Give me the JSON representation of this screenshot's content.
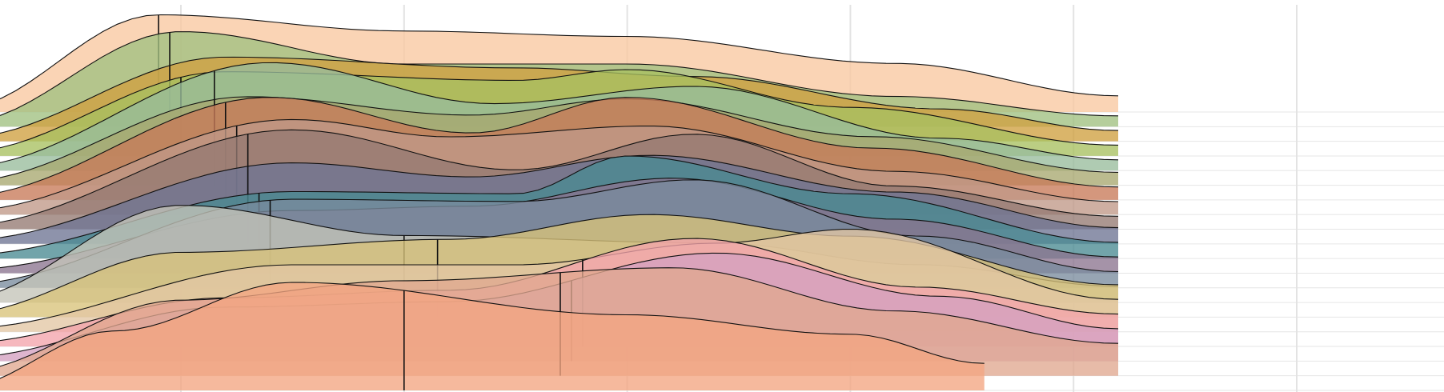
{
  "chart_data": {
    "type": "ridgeline",
    "title": "",
    "xlabel": "",
    "ylabel": "",
    "x_range": [
      -1.0,
      5.2
    ],
    "x_gridlines": [
      0,
      1,
      2,
      3,
      4,
      5
    ],
    "grid": true,
    "legend": "none",
    "median_lines": true,
    "series": [
      {
        "name": "",
        "color": "#f4a582",
        "x_range": [
          -1.0,
          3.6
        ],
        "density": [
          [
            -1.0,
            0.02
          ],
          [
            -0.3,
            0.55
          ],
          [
            0.5,
            1.0
          ],
          [
            2.0,
            0.7
          ],
          [
            3.0,
            0.52
          ],
          [
            3.6,
            0.25
          ]
        ],
        "median": 1.0
      },
      {
        "name": "",
        "color": "#e0a890",
        "x_range": [
          -1.0,
          4.2
        ],
        "density": [
          [
            -1.0,
            0.03
          ],
          [
            0.0,
            0.7
          ],
          [
            1.0,
            0.88
          ],
          [
            2.2,
            1.0
          ],
          [
            3.2,
            0.6
          ],
          [
            4.2,
            0.3
          ]
        ],
        "median": 1.7
      },
      {
        "name": "",
        "color": "#d4a0c0",
        "x_range": [
          -1.0,
          4.2
        ],
        "density": [
          [
            -1.0,
            0.03
          ],
          [
            0.2,
            0.5
          ],
          [
            1.2,
            0.55
          ],
          [
            2.4,
            1.0
          ],
          [
            3.4,
            0.6
          ],
          [
            4.2,
            0.3
          ]
        ],
        "median": 1.75
      },
      {
        "name": "",
        "color": "#f4a4ac",
        "x_range": [
          -1.0,
          4.2
        ],
        "density": [
          [
            -1.0,
            0.03
          ],
          [
            0.2,
            0.45
          ],
          [
            1.2,
            0.52
          ],
          [
            2.3,
            1.0
          ],
          [
            3.3,
            0.55
          ],
          [
            4.2,
            0.3
          ]
        ],
        "median": 1.8
      },
      {
        "name": "",
        "color": "#e3c7a4",
        "x_range": [
          -1.0,
          4.2
        ],
        "density": [
          [
            -1.0,
            0.03
          ],
          [
            0.5,
            0.62
          ],
          [
            1.5,
            0.62
          ],
          [
            2.4,
            0.82
          ],
          [
            3.0,
            0.95
          ],
          [
            4.2,
            0.3
          ]
        ],
        "median": 1.8
      },
      {
        "name": "",
        "color": "#d9c37a",
        "x_range": [
          -1.0,
          4.2
        ],
        "density": [
          [
            -1.0,
            0.03
          ],
          [
            0.0,
            0.6
          ],
          [
            1.2,
            0.72
          ],
          [
            2.1,
            0.95
          ],
          [
            3.0,
            0.75
          ],
          [
            4.2,
            0.3
          ]
        ],
        "median": 1.15
      },
      {
        "name": "",
        "color": "#c4c4b8",
        "x_range": [
          -1.0,
          4.2
        ],
        "density": [
          [
            -1.0,
            0.03
          ],
          [
            0.0,
            0.9
          ],
          [
            1.0,
            0.62
          ],
          [
            2.4,
            0.55
          ],
          [
            3.3,
            0.35
          ],
          [
            4.2,
            0.15
          ]
        ],
        "median": 1.0
      },
      {
        "name": "",
        "color": "#7a8c9e",
        "x_range": [
          -1.0,
          4.2
        ],
        "density": [
          [
            -1.0,
            0.03
          ],
          [
            0.5,
            0.82
          ],
          [
            1.5,
            0.8
          ],
          [
            2.3,
            1.0
          ],
          [
            3.3,
            0.48
          ],
          [
            4.2,
            0.15
          ]
        ],
        "median": 0.4
      },
      {
        "name": "",
        "color": "#8c7490",
        "x_range": [
          -1.0,
          4.2
        ],
        "density": [
          [
            -1.0,
            0.03
          ],
          [
            0.5,
            0.58
          ],
          [
            1.3,
            0.62
          ],
          [
            2.2,
            0.88
          ],
          [
            3.2,
            0.5
          ],
          [
            4.2,
            0.15
          ]
        ],
        "median": 0.4
      },
      {
        "name": "",
        "color": "#4a8a92",
        "x_range": [
          -1.0,
          4.2
        ],
        "density": [
          [
            -1.0,
            0.03
          ],
          [
            0.5,
            0.62
          ],
          [
            1.5,
            0.6
          ],
          [
            2.0,
            0.95
          ],
          [
            3.0,
            0.6
          ],
          [
            4.2,
            0.15
          ]
        ],
        "median": 0.35
      },
      {
        "name": "",
        "color": "#6e7494",
        "x_range": [
          -1.0,
          4.2
        ],
        "density": [
          [
            -1.0,
            0.03
          ],
          [
            0.5,
            0.75
          ],
          [
            1.3,
            0.62
          ],
          [
            2.1,
            0.82
          ],
          [
            3.2,
            0.48
          ],
          [
            4.2,
            0.15
          ]
        ],
        "median": 0.3
      },
      {
        "name": "",
        "color": "#957a72",
        "x_range": [
          -1.0,
          4.2
        ],
        "density": [
          [
            -1.0,
            0.03
          ],
          [
            0.5,
            0.92
          ],
          [
            1.5,
            0.55
          ],
          [
            2.3,
            0.88
          ],
          [
            3.2,
            0.4
          ],
          [
            4.2,
            0.12
          ]
        ],
        "median": 0.3
      },
      {
        "name": "",
        "color": "#c09888",
        "x_range": [
          -1.0,
          4.2
        ],
        "density": [
          [
            -1.0,
            0.03
          ],
          [
            0.5,
            0.88
          ],
          [
            1.2,
            0.72
          ],
          [
            2.1,
            0.82
          ],
          [
            3.2,
            0.4
          ],
          [
            4.2,
            0.12
          ]
        ],
        "median": 0.25
      },
      {
        "name": "",
        "color": "#c87a58",
        "x_range": [
          -1.0,
          4.2
        ],
        "density": [
          [
            -1.0,
            0.03
          ],
          [
            0.4,
            0.95
          ],
          [
            1.3,
            0.62
          ],
          [
            2.0,
            0.95
          ],
          [
            3.1,
            0.48
          ],
          [
            4.2,
            0.12
          ]
        ],
        "median": 0.2
      },
      {
        "name": "",
        "color": "#a8a870",
        "x_range": [
          -1.0,
          4.2
        ],
        "density": [
          [
            -1.0,
            0.03
          ],
          [
            0.3,
            0.82
          ],
          [
            1.3,
            0.65
          ],
          [
            2.0,
            0.8
          ],
          [
            3.1,
            0.45
          ],
          [
            4.2,
            0.12
          ]
        ],
        "median": 0.15
      },
      {
        "name": "",
        "color": "#98bc9c",
        "x_range": [
          -1.0,
          4.2
        ],
        "density": [
          [
            -1.0,
            0.03
          ],
          [
            0.4,
            1.0
          ],
          [
            1.4,
            0.62
          ],
          [
            2.3,
            0.78
          ],
          [
            3.4,
            0.3
          ],
          [
            4.2,
            0.1
          ]
        ],
        "median": 0.15
      },
      {
        "name": "",
        "color": "#a8c060",
        "x_range": [
          -1.0,
          4.2
        ],
        "density": [
          [
            -1.0,
            0.03
          ],
          [
            0.2,
            0.78
          ],
          [
            1.5,
            0.7
          ],
          [
            2.0,
            0.8
          ],
          [
            3.0,
            0.45
          ],
          [
            4.2,
            0.1
          ]
        ],
        "median": 0.0
      },
      {
        "name": "",
        "color": "#d0a040",
        "x_range": [
          -1.0,
          4.2
        ],
        "density": [
          [
            -1.0,
            0.03
          ],
          [
            0.2,
            0.78
          ],
          [
            1.5,
            0.68
          ],
          [
            2.3,
            0.6
          ],
          [
            3.4,
            0.3
          ],
          [
            4.2,
            0.1
          ]
        ],
        "median": -0.05
      },
      {
        "name": "",
        "color": "#a0c080",
        "x_range": [
          -1.0,
          4.2
        ],
        "density": [
          [
            -1.0,
            0.03
          ],
          [
            0.0,
            0.88
          ],
          [
            1.0,
            0.58
          ],
          [
            2.0,
            0.58
          ],
          [
            3.2,
            0.28
          ],
          [
            4.2,
            0.1
          ]
        ],
        "median": -0.05
      },
      {
        "name": "",
        "color": "#f8c8a0",
        "x_range": [
          -1.0,
          4.2
        ],
        "density": [
          [
            -1.0,
            0.03
          ],
          [
            -0.1,
            0.9
          ],
          [
            1.0,
            0.75
          ],
          [
            2.0,
            0.7
          ],
          [
            3.2,
            0.45
          ],
          [
            4.2,
            0.15
          ]
        ],
        "median": -0.1
      }
    ]
  }
}
